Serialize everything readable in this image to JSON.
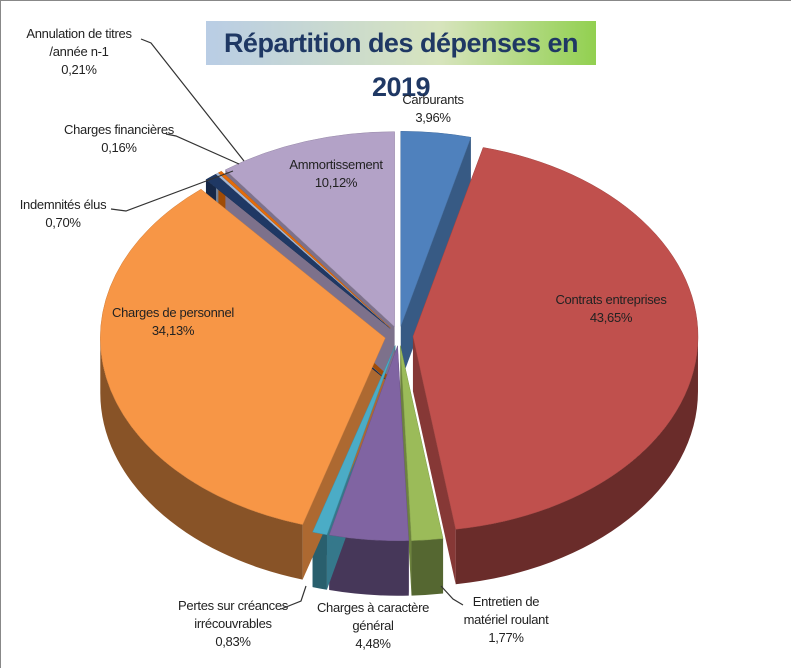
{
  "chart_data": {
    "type": "pie",
    "title": "Répartition des dépenses en 2019",
    "categories": [
      "Carburants",
      "Contrats entreprises",
      "Entretien de\nmatériel roulant",
      "Charges à caractère\ngénéral",
      "Pertes sur créances\nirrécouvrables",
      "Charges de personnel",
      "Indemnités élus",
      "Charges financières",
      "Annulation de titres\n/année n-1",
      "Ammortissement"
    ],
    "values": [
      3.96,
      43.65,
      1.77,
      4.48,
      0.83,
      34.13,
      0.7,
      0.16,
      0.21,
      10.12
    ],
    "value_labels": [
      "3,96%",
      "43,65%",
      "1,77%",
      "4,48%",
      "0,83%",
      "34,13%",
      "0,70%",
      "0,16%",
      "0,21%",
      "10,12%"
    ],
    "colors": [
      "#4f81bd",
      "#c0504d",
      "#9bbb59",
      "#8064a2",
      "#4bacc6",
      "#f79646",
      "#1f3864",
      "#a6b8d4",
      "#e46c0a",
      "#b3a2c7"
    ]
  }
}
